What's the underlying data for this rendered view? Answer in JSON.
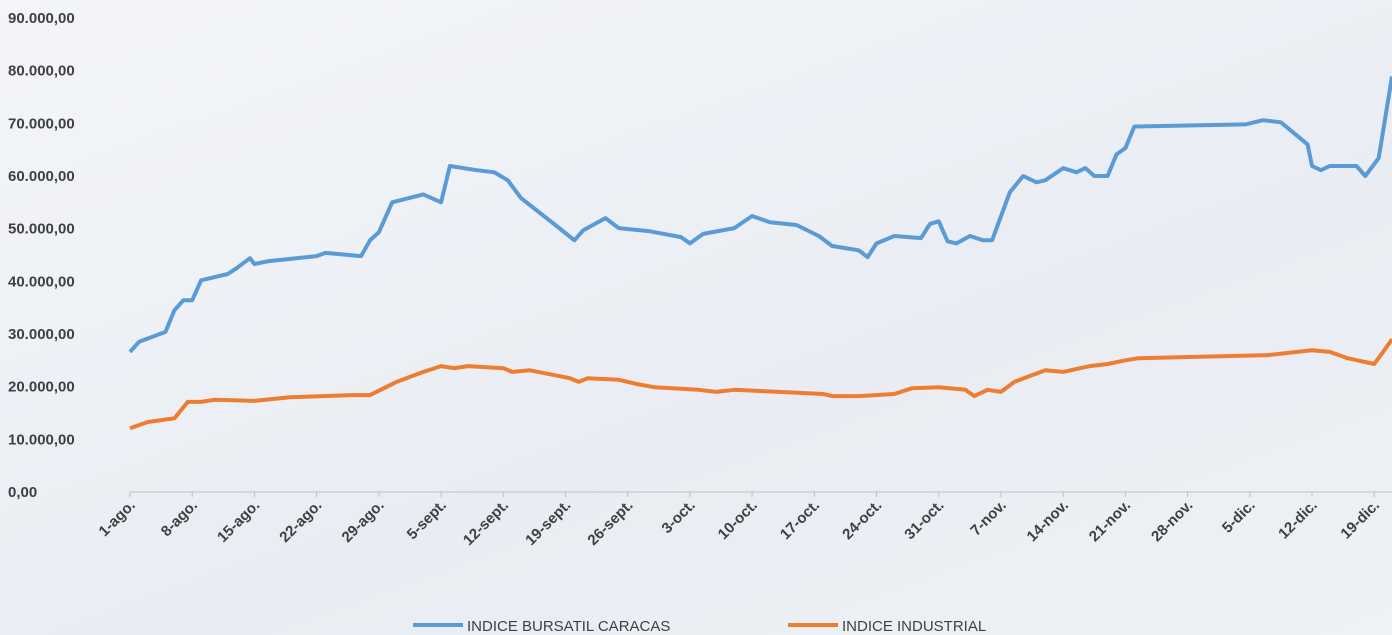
{
  "chart_data": {
    "type": "line",
    "xlim": [
      0,
      142
    ],
    "xticks": [
      {
        "value": 0,
        "label": "1-ago."
      },
      {
        "value": 7,
        "label": "8-ago."
      },
      {
        "value": 14,
        "label": "15-ago."
      },
      {
        "value": 21,
        "label": "22-ago."
      },
      {
        "value": 28,
        "label": "29-ago."
      },
      {
        "value": 35,
        "label": "5-sept."
      },
      {
        "value": 42,
        "label": "12-sept."
      },
      {
        "value": 49,
        "label": "19-sept."
      },
      {
        "value": 56,
        "label": "26-sept."
      },
      {
        "value": 63,
        "label": "3-oct."
      },
      {
        "value": 70,
        "label": "10-oct."
      },
      {
        "value": 77,
        "label": "17-oct."
      },
      {
        "value": 84,
        "label": "24-oct."
      },
      {
        "value": 91,
        "label": "31-oct."
      },
      {
        "value": 98,
        "label": "7-nov."
      },
      {
        "value": 105,
        "label": "14-nov."
      },
      {
        "value": 112,
        "label": "21-nov."
      },
      {
        "value": 119,
        "label": "28-nov."
      },
      {
        "value": 126,
        "label": "5-dic."
      },
      {
        "value": 133,
        "label": "12-dic."
      },
      {
        "value": 140,
        "label": "19-dic."
      }
    ],
    "ylim": [
      0,
      90000
    ],
    "yticks": [
      {
        "value": 0,
        "label": "0,00"
      },
      {
        "value": 10000,
        "label": "10.000,00"
      },
      {
        "value": 20000,
        "label": "20.000,00"
      },
      {
        "value": 30000,
        "label": "30.000,00"
      },
      {
        "value": 40000,
        "label": "40.000,00"
      },
      {
        "value": 50000,
        "label": "50.000,00"
      },
      {
        "value": 60000,
        "label": "60.000,00"
      },
      {
        "value": 70000,
        "label": "70.000,00"
      },
      {
        "value": 80000,
        "label": "80.000,00"
      },
      {
        "value": 90000,
        "label": "90.000,00"
      }
    ],
    "legend": "bottom",
    "series": [
      {
        "name": "INDICE BURSATIL CARACAS",
        "color": "#5b9bd5",
        "x": [
          0,
          1,
          4,
          5,
          6,
          7,
          8,
          11,
          12,
          13.5,
          14,
          15.5,
          21,
          22,
          26,
          27,
          28,
          29.5,
          33,
          35,
          36,
          39,
          41,
          42.5,
          44,
          48,
          50,
          51,
          53.5,
          55,
          58.5,
          62,
          63,
          64.5,
          68,
          70,
          72,
          75,
          77.5,
          79,
          82,
          83,
          84,
          86,
          89,
          90,
          91,
          92,
          93,
          94.5,
          96,
          97,
          99,
          100.5,
          102,
          103,
          105,
          106.5,
          107.5,
          108.5,
          110,
          111,
          112,
          113,
          125.5,
          127.5,
          129.5,
          132.5,
          133,
          134,
          135,
          138,
          139,
          140.5,
          142
        ],
        "values": [
          26600,
          28500,
          30400,
          34500,
          36400,
          36400,
          40200,
          41400,
          42500,
          44400,
          43300,
          43800,
          44800,
          45400,
          44800,
          47800,
          49300,
          55000,
          56500,
          55000,
          61900,
          61100,
          60700,
          59200,
          55800,
          50500,
          47800,
          49700,
          52000,
          50100,
          49500,
          48400,
          47200,
          49000,
          50100,
          52400,
          51200,
          50700,
          48600,
          46700,
          45900,
          44600,
          47200,
          48600,
          48200,
          50900,
          51400,
          47600,
          47200,
          48600,
          47800,
          47800,
          56900,
          60000,
          58800,
          59200,
          61500,
          60700,
          61500,
          60000,
          60000,
          64100,
          65300,
          69400,
          69800,
          70600,
          70200,
          66000,
          61900,
          61100,
          61900,
          61900,
          60000,
          63400,
          78900
        ]
      },
      {
        "name": "INDICE INDUSTRIAL",
        "color": "#ed7d31",
        "x": [
          0,
          2,
          5,
          6.5,
          8,
          9.5,
          14,
          18,
          25,
          27,
          30,
          33,
          35,
          36.5,
          38,
          42,
          43,
          45,
          49.5,
          50.5,
          51.5,
          55,
          57,
          59,
          64,
          66,
          68,
          73,
          78,
          79,
          82,
          86,
          88,
          91,
          94,
          95,
          96.5,
          98,
          99.5,
          101.5,
          103,
          105,
          108,
          110,
          112,
          113.5,
          128,
          133,
          135,
          137,
          140,
          141,
          142
        ],
        "values": [
          12100,
          13300,
          14000,
          17100,
          17100,
          17500,
          17300,
          18000,
          18400,
          18400,
          20900,
          22800,
          23900,
          23500,
          23900,
          23500,
          22800,
          23100,
          21600,
          20900,
          21600,
          21300,
          20500,
          19900,
          19400,
          19000,
          19400,
          19000,
          18600,
          18200,
          18200,
          18600,
          19700,
          19900,
          19400,
          18200,
          19400,
          19000,
          20900,
          22200,
          23100,
          22800,
          23900,
          24300,
          25000,
          25400,
          26000,
          26900,
          26600,
          25400,
          24300,
          26600,
          29000
        ]
      }
    ]
  }
}
